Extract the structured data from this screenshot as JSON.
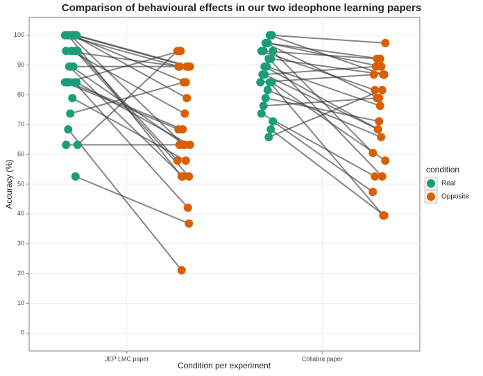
{
  "chart_data": {
    "type": "paired-dots",
    "title": "Comparison of behavioural effects in our two ideophone learning papers",
    "x_label": "Condition per experiment",
    "y_label": "Accuracy (%)",
    "legend_title": "condition",
    "categories": [
      "JEP:LMC paper",
      "Collabra paper"
    ],
    "ylim": [
      -6,
      106
    ],
    "yticks": [
      0,
      10,
      20,
      30,
      40,
      50,
      60,
      70,
      80,
      90,
      100
    ],
    "grid": true,
    "legend": "right",
    "series": [
      {
        "name": "Real",
        "color": "#1b9e77",
        "values": [
          [
            100,
            100,
            100,
            100,
            100,
            100,
            94.7,
            94.7,
            94.7,
            89.5,
            89.5,
            89.5,
            84.2,
            84.2,
            84.2,
            84.2,
            78.9,
            73.7,
            68.4,
            63.2,
            63.2,
            52.6,
            100,
            94.7,
            84.2
          ],
          [
            100,
            100,
            97.4,
            97.4,
            94.7,
            94.7,
            94.7,
            92.1,
            92.1,
            89.5,
            86.8,
            86.8,
            84.2,
            84.2,
            84.2,
            81.6,
            78.9,
            76.3,
            73.7,
            71.1,
            68.4,
            65.8,
            97.4,
            89.5
          ]
        ]
      },
      {
        "name": "Opposite",
        "color": "#d95f02",
        "values": [
          [
            89.5,
            89.5,
            89.5,
            84.2,
            63.2,
            52.6,
            89.5,
            57.9,
            52.6,
            89.5,
            63.2,
            52.6,
            94.7,
            68.4,
            63.2,
            42.1,
            57.9,
            84.2,
            21.1,
            63.2,
            94.7,
            36.8,
            78.9,
            73.7,
            68.4
          ],
          [
            97.4,
            86.8,
            89.5,
            78.9,
            92.1,
            81.6,
            60.5,
            86.8,
            52.6,
            76.3,
            68.4,
            89.5,
            86.8,
            57.9,
            39.5,
            65.8,
            71.1,
            78.9,
            52.6,
            47.4,
            39.5,
            81.6,
            92.1,
            68.4
          ]
        ]
      }
    ]
  }
}
